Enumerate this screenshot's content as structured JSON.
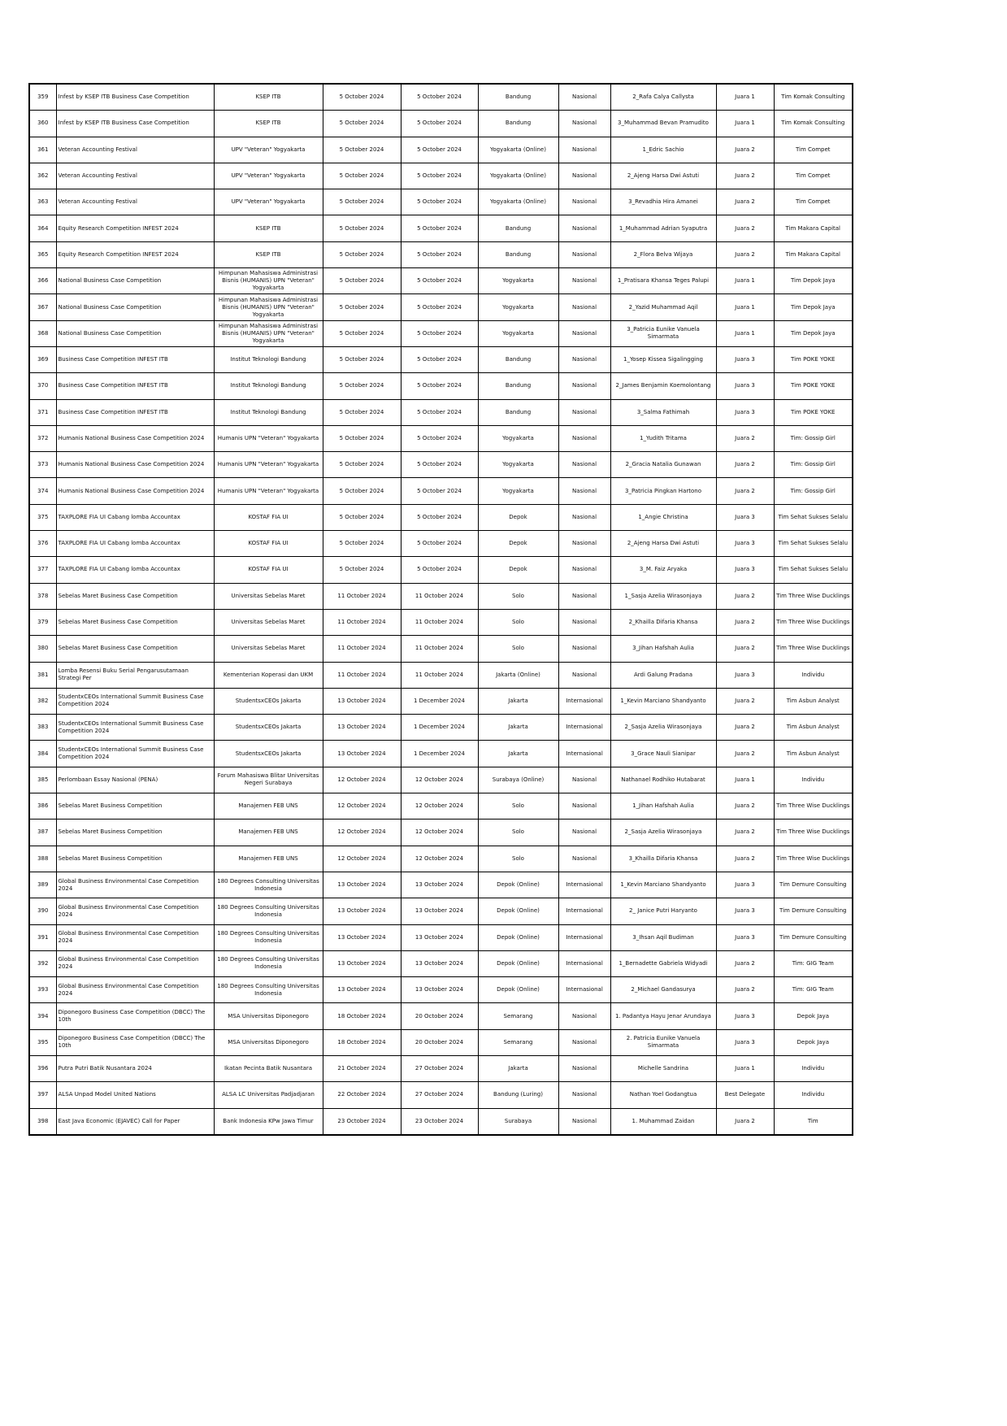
{
  "table": {
    "rows": [
      [
        359,
        "Infest by KSEP ITB Business Case Competition",
        "KSEP ITB",
        "5 October 2024",
        "5 October 2024",
        "Bandung",
        "Nasional",
        "2_Rafa Calya Callysta",
        "Juara 1",
        "Tim Komak Consulting"
      ],
      [
        360,
        "Infest by KSEP ITB Business Case Competition",
        "KSEP ITB",
        "5 October 2024",
        "5 October 2024",
        "Bandung",
        "Nasional",
        "3_Muhammad Bevan Pramudito",
        "Juara 1",
        "Tim Komak Consulting"
      ],
      [
        361,
        "Veteran Accounting Festival",
        "UPV \"Veteran\" Yogyakarta",
        "5 October 2024",
        "5 October 2024",
        "Yogyakarta (Online)",
        "Nasional",
        "1_Edric Sachio",
        "Juara 2",
        "Tim Compet"
      ],
      [
        362,
        "Veteran Accounting Festival",
        "UPV \"Veteran\" Yogyakarta",
        "5 October 2024",
        "5 October 2024",
        "Yogyakarta (Online)",
        "Nasional",
        "2_Ajeng Harsa Dwi Astuti",
        "Juara 2",
        "Tim Compet"
      ],
      [
        363,
        "Veteran Accounting Festival",
        "UPV \"Veteran\" Yogyakarta",
        "5 October 2024",
        "5 October 2024",
        "Yogyakarta (Online)",
        "Nasional",
        "3_Revadhia Hira Amanei",
        "Juara 2",
        "Tim Compet"
      ],
      [
        364,
        "Equity Research Competition INFEST 2024",
        "KSEP ITB",
        "5 October 2024",
        "5 October 2024",
        "Bandung",
        "Nasional",
        "1_Muhammad Adrian Syaputra",
        "Juara 2",
        "Tim Makara Capital"
      ],
      [
        365,
        "Equity Research Competition INFEST 2024",
        "KSEP ITB",
        "5 October 2024",
        "5 October 2024",
        "Bandung",
        "Nasional",
        "2_Flora Belva Wijaya",
        "Juara 2",
        "Tim Makara Capital"
      ],
      [
        366,
        "National Business Case Competition",
        "Himpunan Mahasiswa Administrasi Bisnis (HUMANIS) UPN \"Veteran\" Yogyakarta",
        "5 October 2024",
        "5 October 2024",
        "Yogyakarta",
        "Nasional",
        "1_Pratisara Khansa Teges Palupi",
        "Juara 1",
        "Tim Depok Jaya"
      ],
      [
        367,
        "National Business Case Competition",
        "Himpunan Mahasiswa Administrasi Bisnis (HUMANIS) UPN \"Veteran\" Yogyakarta",
        "5 October 2024",
        "5 October 2024",
        "Yogyakarta",
        "Nasional",
        "2_Yazid Muhammad Aqil",
        "Juara 1",
        "Tim Depok Jaya"
      ],
      [
        368,
        "National Business Case Competition",
        "Himpunan Mahasiswa Administrasi Bisnis (HUMANIS) UPN \"Veteran\" Yogyakarta",
        "5 October 2024",
        "5 October 2024",
        "Yogyakarta",
        "Nasional",
        "3_Patricia Eunike Vanuela Simarmata",
        "Juara 1",
        "Tim Depok Jaya"
      ],
      [
        369,
        "Business Case Competition INFEST ITB",
        "Institut Teknologi Bandung",
        "5 October 2024",
        "5 October 2024",
        "Bandung",
        "Nasional",
        "1_Yosep Kissea Sigalingging",
        "Juara 3",
        "Tim POKE YOKE"
      ],
      [
        370,
        "Business Case Competition INFEST ITB",
        "Institut Teknologi Bandung",
        "5 October 2024",
        "5 October 2024",
        "Bandung",
        "Nasional",
        "2_James Benjamin Koemolontang",
        "Juara 3",
        "Tim POKE YOKE"
      ],
      [
        371,
        "Business Case Competition INFEST ITB",
        "Institut Teknologi Bandung",
        "5 October 2024",
        "5 October 2024",
        "Bandung",
        "Nasional",
        "3_Salma Fathimah",
        "Juara 3",
        "Tim POKE YOKE"
      ],
      [
        372,
        "Humanis National Business Case Competition 2024",
        "Humanis UPN \"Veteran\" Yogyakarta",
        "5 October 2024",
        "5 October 2024",
        "Yogyakarta",
        "Nasional",
        "1_Yudith Tritama",
        "Juara 2",
        "Tim: Gossip Girl"
      ],
      [
        373,
        "Humanis National Business Case Competition 2024",
        "Humanis UPN \"Veteran\" Yogyakarta",
        "5 October 2024",
        "5 October 2024",
        "Yogyakarta",
        "Nasional",
        "2_Gracia Natalia Gunawan",
        "Juara 2",
        "Tim: Gossip Girl"
      ],
      [
        374,
        "Humanis National Business Case Competition 2024",
        "Humanis UPN \"Veteran\" Yogyakarta",
        "5 October 2024",
        "5 October 2024",
        "Yogyakarta",
        "Nasional",
        "3_Patricia Pingkan Hartono",
        "Juara 2",
        "Tim: Gossip Girl"
      ],
      [
        375,
        "TAXPLORE FIA UI Cabang lomba Accountax",
        "KOSTAF FIA UI",
        "5 October 2024",
        "5 October 2024",
        "Depok",
        "Nasional",
        "1_Angie Christina",
        "Juara 3",
        "Tim Sehat Sukses Selalu"
      ],
      [
        376,
        "TAXPLORE FIA UI Cabang lomba Accountax",
        "KOSTAF FIA UI",
        "5 October 2024",
        "5 October 2024",
        "Depok",
        "Nasional",
        "2_Ajeng Harsa Dwi Astuti",
        "Juara 3",
        "Tim Sehat Sukses Selalu"
      ],
      [
        377,
        "TAXPLORE FIA UI Cabang lomba Accountax",
        "KOSTAF FIA UI",
        "5 October 2024",
        "5 October 2024",
        "Depok",
        "Nasional",
        "3_M. Faiz Aryaka",
        "Juara 3",
        "Tim Sehat Sukses Selalu"
      ],
      [
        378,
        "Sebelas Maret Business Case Competition",
        "Universitas Sebelas Maret",
        "11 October 2024",
        "11 October 2024",
        "Solo",
        "Nasional",
        "1_Sasja Azelia Wirasonjaya",
        "Juara 2",
        "Tim Three Wise Ducklings"
      ],
      [
        379,
        "Sebelas Maret Business Case Competition",
        "Universitas Sebelas Maret",
        "11 October 2024",
        "11 October 2024",
        "Solo",
        "Nasional",
        "2_Khailla Difaria Khansa",
        "Juara 2",
        "Tim Three Wise Ducklings"
      ],
      [
        380,
        "Sebelas Maret Business Case Competition",
        "Universitas Sebelas Maret",
        "11 October 2024",
        "11 October 2024",
        "Solo",
        "Nasional",
        "3_Jihan Hafshah Aulia",
        "Juara 2",
        "Tim Three Wise Ducklings"
      ],
      [
        381,
        "Lomba Resensi Buku Serial Pengarusutamaan Strategi Per",
        "Kementerian Koperasi dan UKM",
        "11 October 2024",
        "11 October 2024",
        "Jakarta (Online)",
        "Nasional",
        "Ardi Galung Pradana",
        "Juara 3",
        "Individu"
      ],
      [
        382,
        "StudentxCEOs International Summit Business Case Competition 2024",
        "StudentsxCEOs Jakarta",
        "13 October 2024",
        "1 December 2024",
        "Jakarta",
        "Internasional",
        "1_Kevin Marciano Shandyanto",
        "Juara 2",
        "Tim Asbun Analyst"
      ],
      [
        383,
        "StudentxCEOs International Summit Business Case Competition 2024",
        "StudentsxCEOs Jakarta",
        "13 October 2024",
        "1 December 2024",
        "Jakarta",
        "Internasional",
        "2_Sasja Azelia Wirasonjaya",
        "Juara 2",
        "Tim Asbun Analyst"
      ],
      [
        384,
        "StudentxCEOs International Summit Business Case Competition 2024",
        "StudentsxCEOs Jakarta",
        "13 October 2024",
        "1 December 2024",
        "Jakarta",
        "Internasional",
        "3_Grace Nauli Sianipar",
        "Juara 2",
        "Tim Asbun Analyst"
      ],
      [
        385,
        "Perlombaan Essay Nasional (PENA)",
        "Forum Mahasiswa Blitar Universitas Negeri Surabaya",
        "12 October 2024",
        "12 October 2024",
        "Surabaya (Online)",
        "Nasional",
        "Nathanael Rodhiko Hutabarat",
        "Juara 1",
        "Individu"
      ],
      [
        386,
        "Sebelas Maret Business Competition",
        "Manajemen FEB UNS",
        "12 October 2024",
        "12 October 2024",
        "Solo",
        "Nasional",
        "1_Jihan Hafshah Aulia",
        "Juara 2",
        "Tim Three Wise Ducklings"
      ],
      [
        387,
        "Sebelas Maret Business Competition",
        "Manajemen FEB UNS",
        "12 October 2024",
        "12 October 2024",
        "Solo",
        "Nasional",
        "2_Sasja Azelia Wirasonjaya",
        "Juara 2",
        "Tim Three Wise Ducklings"
      ],
      [
        388,
        "Sebelas Maret Business Competition",
        "Manajemen FEB UNS",
        "12 October 2024",
        "12 October 2024",
        "Solo",
        "Nasional",
        "3_Khailla Difaria Khansa",
        "Juara 2",
        "Tim Three Wise Ducklings"
      ],
      [
        389,
        "Global Business Environmental Case Competition 2024",
        "180 Degrees Consulting Universitas Indonesia",
        "13 October 2024",
        "13 October 2024",
        "Depok (Online)",
        "Internasional",
        "1_Kevin Marciano Shandyanto",
        "Juara 3",
        "Tim Demure Consulting"
      ],
      [
        390,
        "Global Business Environmental Case Competition 2024",
        "180 Degrees Consulting Universitas Indonesia",
        "13 October 2024",
        "13 October 2024",
        "Depok (Online)",
        "Internasional",
        "2_ Janice Putri Haryanto",
        "Juara 3",
        "Tim Demure Consulting"
      ],
      [
        391,
        "Global Business Environmental Case Competition 2024",
        "180 Degrees Consulting Universitas Indonesia",
        "13 October 2024",
        "13 October 2024",
        "Depok (Online)",
        "Internasional",
        "3_Ihsan Aqil Budiman",
        "Juara 3",
        "Tim Demure Consulting"
      ],
      [
        392,
        "Global Business Environmental Case Competition 2024",
        "180 Degrees Consulting Universitas Indonesia",
        "13 October 2024",
        "13 October 2024",
        "Depok (Online)",
        "Internasional",
        "1_Bernadette Gabriela Widyadi",
        "Juara 2",
        "Tim: GIG Team"
      ],
      [
        393,
        "Global Business Environmental Case Competition 2024",
        "180 Degrees Consulting Universitas Indonesia",
        "13 October 2024",
        "13 October 2024",
        "Depok (Online)",
        "Internasional",
        "2_Michael Gandasurya",
        "Juara 2",
        "Tim: GIG Team"
      ],
      [
        394,
        "Diponegoro Business Case Competition (DBCC) The 10th",
        "MSA Universitas Diponegoro",
        "18 October 2024",
        "20 October 2024",
        "Semarang",
        "Nasional",
        "1. Padantya Hayu Jenar Arundaya",
        "Juara 3",
        "Depok Jaya"
      ],
      [
        395,
        "Diponegoro Business Case Competition (DBCC) The 10th",
        "MSA Universitas Diponegoro",
        "18 October 2024",
        "20 October 2024",
        "Semarang",
        "Nasional",
        "2. Patricia Eunike Vanuela Simarmata",
        "Juara 3",
        "Depok Jaya"
      ],
      [
        396,
        "Putra Putri Batik Nusantara 2024",
        "Ikatan Pecinta Batik Nusantara",
        "21 October 2024",
        "27 October 2024",
        "Jakarta",
        "Nasional",
        "Michelle Sandrina",
        "Juara 1",
        "Individu"
      ],
      [
        397,
        "ALSA Unpad Model United Nations",
        "ALSA LC Universitas Padjadjaran",
        "22 October 2024",
        "27 October 2024",
        "Bandung (Luring)",
        "Nasional",
        "Nathan Yoel Godangtua",
        "Best Delegate",
        "Individu"
      ],
      [
        398,
        "East Java Economic (EJAVEC) Call for Paper",
        "Bank Indonesia KPw Jawa Timur",
        "23 October 2024",
        "23 October 2024",
        "Surabaya",
        "Nasional",
        "1. Muhammad Zaidan",
        "Juara 2",
        "Tim"
      ]
    ]
  }
}
